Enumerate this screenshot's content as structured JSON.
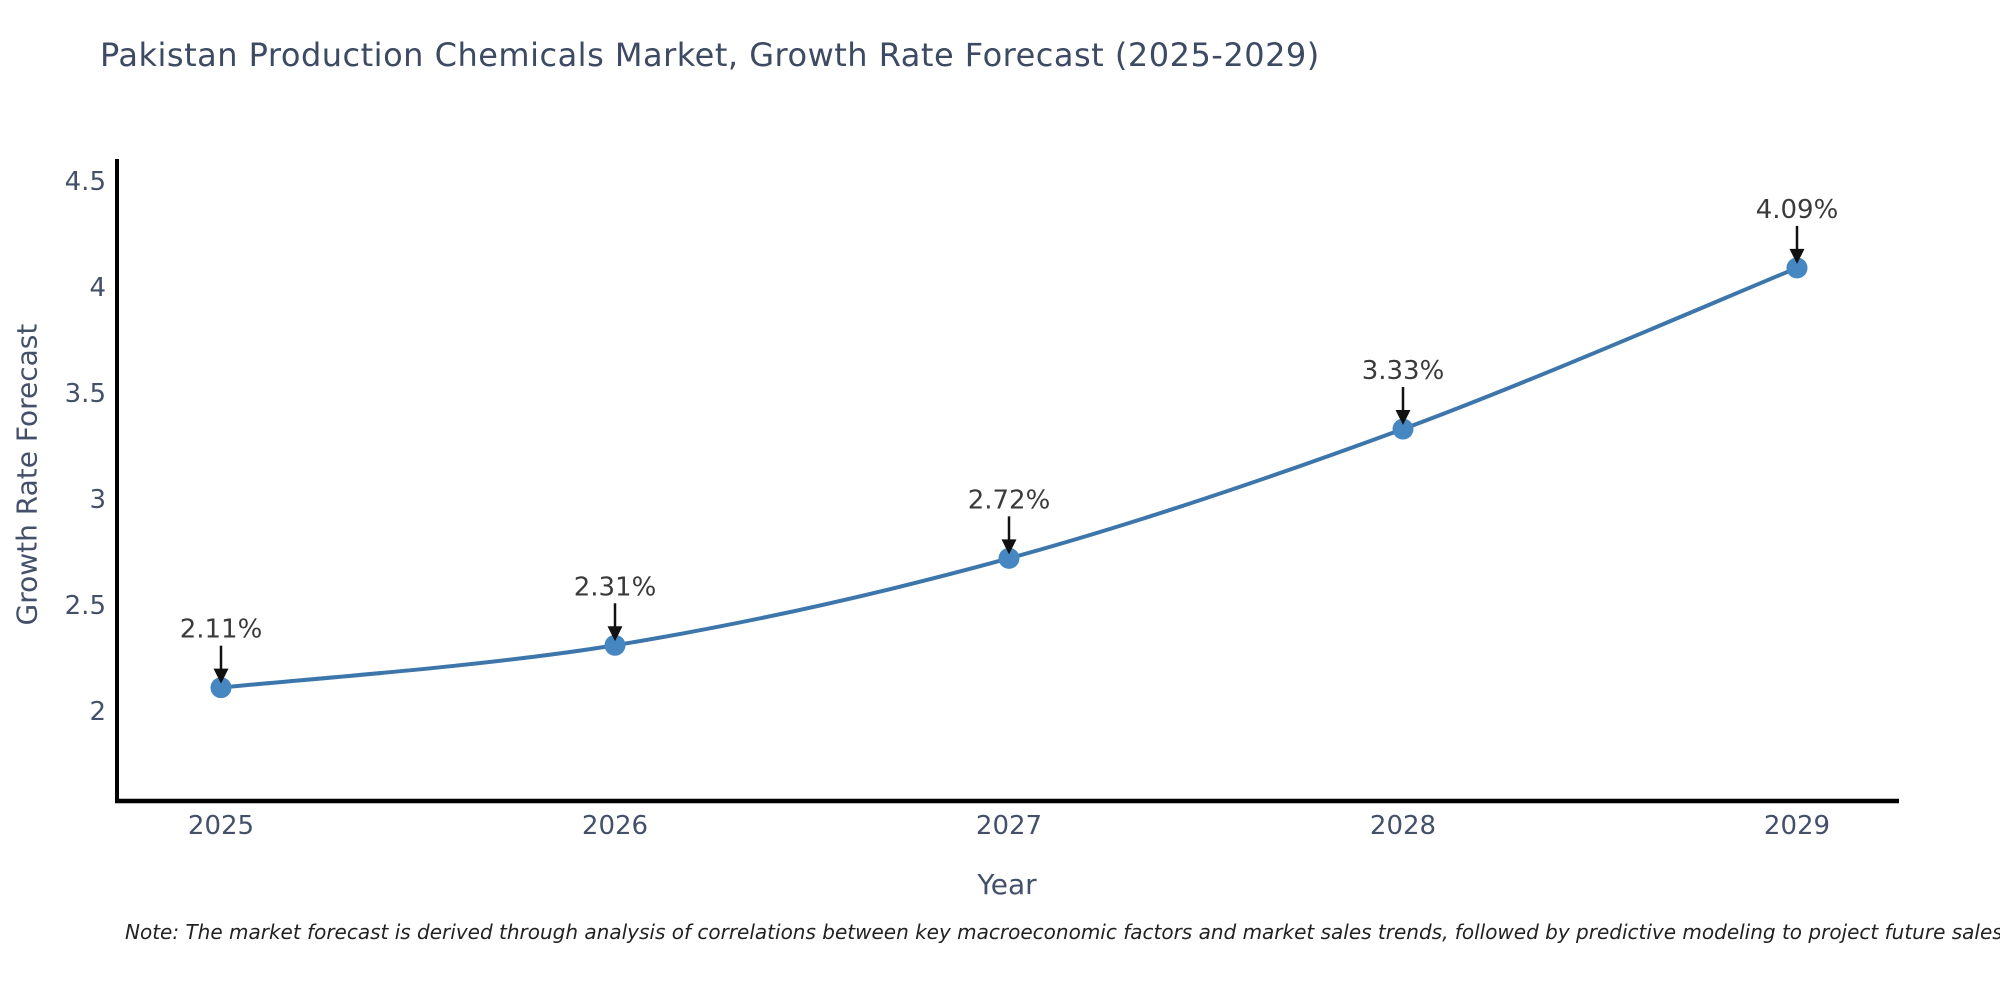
{
  "title": "Pakistan Production Chemicals Market, Growth Rate Forecast (2025-2029)",
  "note": "Note: The market forecast is derived through analysis of correlations between key macroeconomic factors and market sales trends, followed by predictive modeling to project future sales",
  "chart_data": {
    "type": "line",
    "title": "Pakistan Production Chemicals Market, Growth Rate Forecast (2025-2029)",
    "xlabel": "Year",
    "ylabel": "Growth Rate Forecast",
    "categories": [
      "2025",
      "2026",
      "2027",
      "2028",
      "2029"
    ],
    "series": [
      {
        "name": "Growth Rate Forecast",
        "values": [
          2.11,
          2.31,
          2.72,
          3.33,
          4.09
        ]
      }
    ],
    "point_labels": [
      "2.11%",
      "2.31%",
      "2.72%",
      "3.33%",
      "4.09%"
    ],
    "yticks": [
      2,
      2.5,
      3,
      3.5,
      4,
      4.5
    ],
    "ylim": [
      1.58,
      4.6
    ],
    "grid": false,
    "legend": "none",
    "colors": {
      "line": "#3d76ab",
      "marker": "#4787c1",
      "annotation_text": "#3a3a3a",
      "annotation_arrow": "#111111",
      "axis_spine": "#000000",
      "tick_label": "#44506a",
      "title_text": "#3d4a63"
    }
  }
}
